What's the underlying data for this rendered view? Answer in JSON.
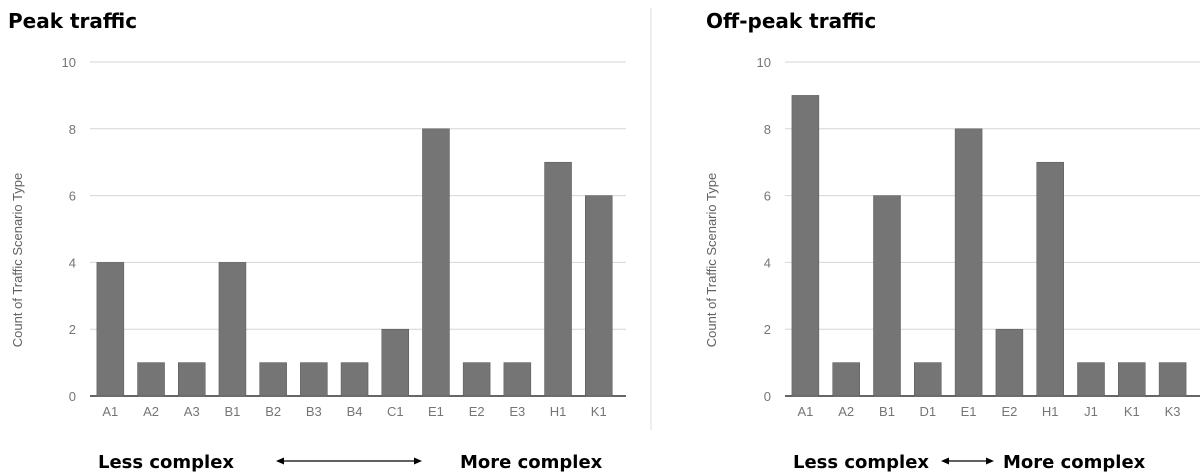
{
  "chart_data": [
    {
      "type": "bar",
      "title": "Peak traffic",
      "ylabel": "Count of Traffic Scenario Type",
      "ylim": [
        0,
        10
      ],
      "yticks": [
        0,
        2,
        4,
        6,
        8,
        10
      ],
      "grid": true,
      "categories": [
        "A1",
        "A2",
        "A3",
        "B1",
        "B2",
        "B3",
        "B4",
        "C1",
        "E1",
        "E2",
        "E3",
        "H1",
        "K1"
      ],
      "values": [
        4,
        1,
        1,
        4,
        1,
        1,
        1,
        2,
        8,
        1,
        1,
        7,
        6
      ],
      "bar_color": "#757575",
      "annotation_left": "Less complex",
      "annotation_right": "More complex"
    },
    {
      "type": "bar",
      "title": "Off-peak traffic",
      "ylabel": "Count of Traffic Scenario Type",
      "ylim": [
        0,
        10
      ],
      "yticks": [
        0,
        2,
        4,
        6,
        8,
        10
      ],
      "grid": true,
      "categories": [
        "A1",
        "A2",
        "B1",
        "D1",
        "E1",
        "E2",
        "H1",
        "J1",
        "K1",
        "K3"
      ],
      "values": [
        9,
        1,
        6,
        1,
        8,
        2,
        7,
        1,
        1,
        1
      ],
      "bar_color": "#757575",
      "annotation_left": "Less complex",
      "annotation_right": "More complex"
    }
  ]
}
